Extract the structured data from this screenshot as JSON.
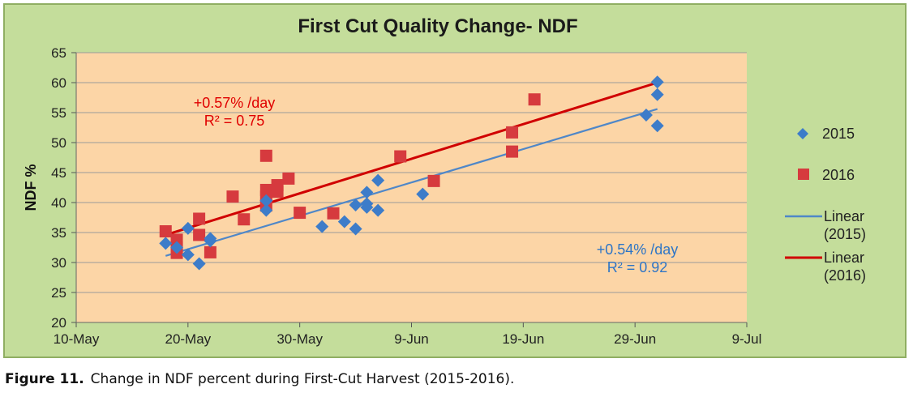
{
  "caption": {
    "label": "Figure 11.",
    "text": "Change in NDF percent during First-Cut Harvest (2015-2016)."
  },
  "chart_data": {
    "type": "scatter",
    "title": "First Cut Quality Change- NDF",
    "xlabel": "",
    "ylabel": "NDF %",
    "x_ticks": [
      "10-May",
      "20-May",
      "30-May",
      "9-Jun",
      "19-Jun",
      "29-Jun",
      "9-Jul"
    ],
    "xlim": [
      "2016-05-10",
      "2016-07-09"
    ],
    "ylim": [
      20,
      65
    ],
    "y_ticks": [
      20,
      25,
      30,
      35,
      40,
      45,
      50,
      55,
      60,
      65
    ],
    "grid": true,
    "legend_position": "right",
    "colors": {
      "plot_bg": "#fcd5a6",
      "chart_bg": "#c4dd9b",
      "s2015": "#3d7cc9",
      "s2016": "#d63a3e",
      "line2015": "#4f87c8",
      "line2016": "#d00000"
    },
    "series": [
      {
        "name": "2015",
        "marker": "diamond",
        "points": [
          [
            "2016-05-18",
            33.2
          ],
          [
            "2016-05-19",
            32.5
          ],
          [
            "2016-05-20",
            35.7
          ],
          [
            "2016-05-20",
            31.3
          ],
          [
            "2016-05-21",
            29.8
          ],
          [
            "2016-05-22",
            33.6
          ],
          [
            "2016-05-22",
            34.0
          ],
          [
            "2016-05-27",
            38.7
          ],
          [
            "2016-05-27",
            40.3
          ],
          [
            "2016-06-01",
            36.0
          ],
          [
            "2016-06-03",
            36.8
          ],
          [
            "2016-06-04",
            35.6
          ],
          [
            "2016-06-04",
            39.6
          ],
          [
            "2016-06-05",
            39.8
          ],
          [
            "2016-06-05",
            41.7
          ],
          [
            "2016-06-05",
            39.2
          ],
          [
            "2016-06-06",
            43.7
          ],
          [
            "2016-06-06",
            38.7
          ],
          [
            "2016-06-10",
            41.4
          ],
          [
            "2016-06-30",
            54.6
          ],
          [
            "2016-07-01",
            60.1
          ],
          [
            "2016-07-01",
            58.0
          ],
          [
            "2016-07-01",
            52.8
          ]
        ]
      },
      {
        "name": "2016",
        "marker": "square",
        "points": [
          [
            "2016-05-18",
            35.2
          ],
          [
            "2016-05-19",
            33.8
          ],
          [
            "2016-05-19",
            32.5
          ],
          [
            "2016-05-19",
            31.6
          ],
          [
            "2016-05-21",
            37.3
          ],
          [
            "2016-05-21",
            34.6
          ],
          [
            "2016-05-22",
            31.7
          ],
          [
            "2016-05-24",
            41.0
          ],
          [
            "2016-05-25",
            37.2
          ],
          [
            "2016-05-27",
            47.8
          ],
          [
            "2016-05-27",
            42.1
          ],
          [
            "2016-05-27",
            41.0
          ],
          [
            "2016-05-27",
            39.5
          ],
          [
            "2016-05-28",
            42.9
          ],
          [
            "2016-05-28",
            41.8
          ],
          [
            "2016-05-29",
            44.0
          ],
          [
            "2016-05-30",
            38.3
          ],
          [
            "2016-06-02",
            38.2
          ],
          [
            "2016-06-08",
            47.7
          ],
          [
            "2016-06-11",
            43.6
          ],
          [
            "2016-06-18",
            51.7
          ],
          [
            "2016-06-18",
            48.5
          ],
          [
            "2016-06-20",
            57.2
          ]
        ]
      }
    ],
    "trendlines": [
      {
        "name": "Linear (2015)",
        "from": [
          "2016-05-18",
          31.1
        ],
        "to": [
          "2016-07-01",
          55.6
        ]
      },
      {
        "name": "Linear (2016)",
        "from": [
          "2016-05-18",
          34.6
        ],
        "to": [
          "2016-07-01",
          60.0
        ]
      }
    ],
    "annotations": [
      {
        "id": "ann2016",
        "lines": [
          "+0.57% /day",
          "R² = 0.75"
        ]
      },
      {
        "id": "ann2015",
        "lines": [
          "+0.54% /day",
          "R² = 0.92"
        ]
      }
    ],
    "legend": [
      {
        "label_lines": [
          "2015"
        ]
      },
      {
        "label_lines": [
          "2016"
        ]
      },
      {
        "label_lines": [
          "Linear",
          "(2015)"
        ]
      },
      {
        "label_lines": [
          "Linear",
          "(2016)"
        ]
      }
    ]
  }
}
